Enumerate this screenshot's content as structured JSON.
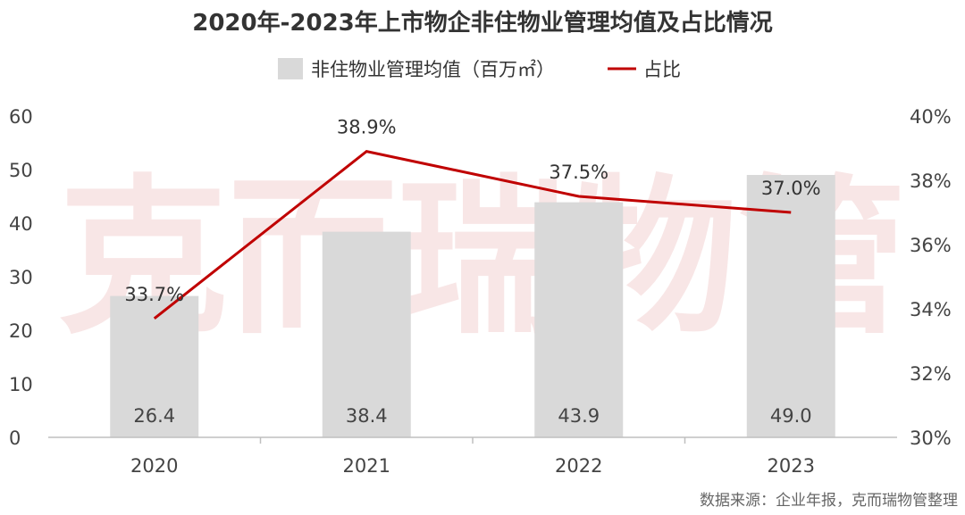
{
  "chart_data": {
    "type": "bar",
    "title": "2020年-2023年上市物企非住物业管理均值及占比情况",
    "categories": [
      "2020",
      "2021",
      "2022",
      "2023"
    ],
    "series": [
      {
        "name": "非住物业管理均值（百万㎡）",
        "type": "bar",
        "axis": "left",
        "values": [
          26.4,
          38.4,
          43.9,
          49.0
        ],
        "labels": [
          "26.4",
          "38.4",
          "43.9",
          "49.0"
        ],
        "color": "#d9d9d9"
      },
      {
        "name": "占比",
        "type": "line",
        "axis": "right",
        "values": [
          33.7,
          38.9,
          37.5,
          37.0
        ],
        "labels": [
          "33.7%",
          "38.9%",
          "37.5%",
          "37.0%"
        ],
        "color": "#c00000"
      }
    ],
    "ylim_left": [
      0,
      60
    ],
    "yticks_left": [
      "0",
      "10",
      "20",
      "30",
      "40",
      "50",
      "60"
    ],
    "ylim_right": [
      30,
      40
    ],
    "yticks_right": [
      "30%",
      "32%",
      "34%",
      "36%",
      "38%",
      "40%"
    ],
    "legend_position": "top-center",
    "grid": false
  },
  "watermark": "克而瑞物管",
  "source_note": "数据来源：企业年报，克而瑞物管整理"
}
